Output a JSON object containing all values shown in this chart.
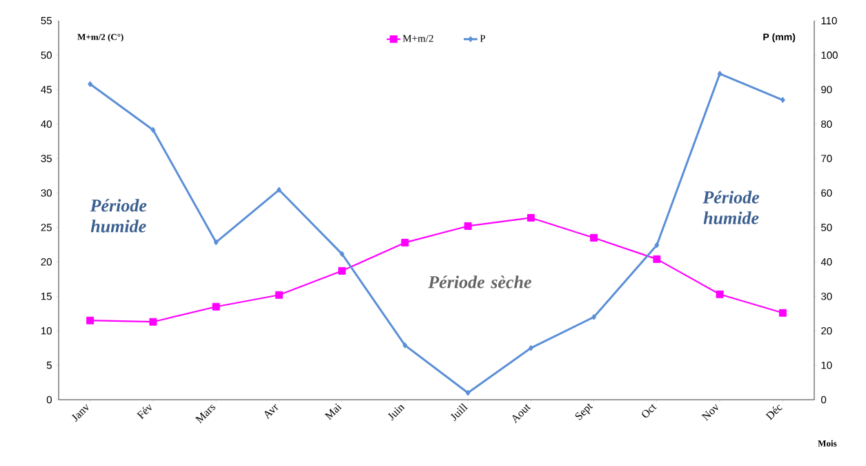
{
  "chart_data": {
    "type": "line",
    "categories": [
      "Janv",
      "Fév",
      "Mars",
      "Avr",
      "Mai",
      "Juin",
      "Juill",
      "Aout",
      "Sept",
      "Oct",
      "Nov",
      "Déc"
    ],
    "series": [
      {
        "name": "M+m/2",
        "color": "#ff00ff",
        "marker": "square",
        "values": [
          11.5,
          11.3,
          13.5,
          15.2,
          18.7,
          22.8,
          25.2,
          26.4,
          23.5,
          20.4,
          15.3,
          12.6
        ]
      },
      {
        "name": "P",
        "color": "#5b8fd6",
        "marker": "diamond",
        "axis": "y2",
        "values": [
          91.6,
          78.3,
          45.7,
          60.9,
          42.3,
          15.8,
          2,
          15,
          24,
          44.9,
          94.6,
          87
        ]
      }
    ],
    "xlabel": "Mois",
    "ylabel": "M+m/2 (C°)",
    "y2label": "P (mm)",
    "ylim": [
      0,
      55
    ],
    "yticks": [
      0,
      5,
      10,
      15,
      20,
      25,
      30,
      35,
      40,
      45,
      50,
      55
    ],
    "y2lim": [
      0,
      110
    ],
    "y2ticks": [
      0,
      10,
      20,
      30,
      40,
      50,
      60,
      70,
      80,
      90,
      100,
      110
    ],
    "legend": "top",
    "annotations": [
      "Période humide",
      "Période sèche",
      "Période humide"
    ]
  }
}
